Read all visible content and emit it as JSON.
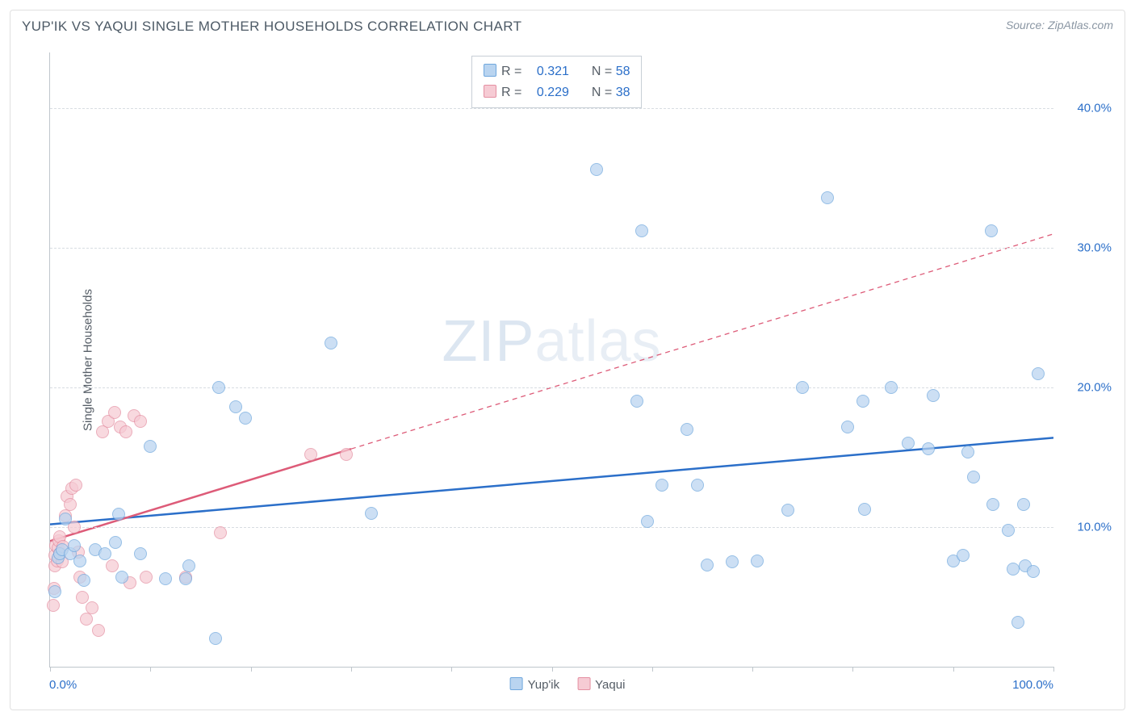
{
  "title": "YUP'IK VS YAQUI SINGLE MOTHER HOUSEHOLDS CORRELATION CHART",
  "source": "Source: ZipAtlas.com",
  "y_axis_label": "Single Mother Households",
  "watermark": {
    "bold": "ZIP",
    "light": "atlas"
  },
  "chart": {
    "type": "scatter",
    "xlim": [
      0,
      100
    ],
    "ylim": [
      0,
      44
    ],
    "x_ticks_label": {
      "min": "0.0%",
      "max": "100.0%"
    },
    "x_tick_positions": [
      0,
      10,
      20,
      30,
      40,
      50,
      60,
      70,
      80,
      90,
      100
    ],
    "y_ticks": [
      {
        "v": 10,
        "label": "10.0%"
      },
      {
        "v": 20,
        "label": "20.0%"
      },
      {
        "v": 30,
        "label": "30.0%"
      },
      {
        "v": 40,
        "label": "40.0%"
      }
    ],
    "background_color": "#ffffff",
    "grid_color": "#d8dde2",
    "series": {
      "yupik": {
        "label": "Yup'ik",
        "marker_fill": "#b9d4f0",
        "marker_stroke": "#6fa7dd",
        "marker_size": 16,
        "regression": {
          "color": "#2b6fc9",
          "width": 2.5,
          "dashed": false,
          "start": {
            "x": 0,
            "y": 10.2
          },
          "end": {
            "x": 100,
            "y": 16.4
          }
        },
        "stats": {
          "R": "0.321",
          "N": "58"
        },
        "points": [
          {
            "x": 0.5,
            "y": 5.4
          },
          {
            "x": 0.8,
            "y": 7.8
          },
          {
            "x": 1.0,
            "y": 8.1
          },
          {
            "x": 1.2,
            "y": 8.4
          },
          {
            "x": 1.5,
            "y": 10.6
          },
          {
            "x": 2.0,
            "y": 8.1
          },
          {
            "x": 2.4,
            "y": 8.7
          },
          {
            "x": 3.0,
            "y": 7.6
          },
          {
            "x": 3.4,
            "y": 6.2
          },
          {
            "x": 4.5,
            "y": 8.4
          },
          {
            "x": 5.5,
            "y": 8.1
          },
          {
            "x": 6.5,
            "y": 8.9
          },
          {
            "x": 6.8,
            "y": 10.9
          },
          {
            "x": 7.2,
            "y": 6.4
          },
          {
            "x": 9.0,
            "y": 8.1
          },
          {
            "x": 10.0,
            "y": 15.8
          },
          {
            "x": 11.5,
            "y": 6.3
          },
          {
            "x": 13.5,
            "y": 6.3
          },
          {
            "x": 13.8,
            "y": 7.2
          },
          {
            "x": 16.5,
            "y": 2.0
          },
          {
            "x": 16.8,
            "y": 20.0
          },
          {
            "x": 18.5,
            "y": 18.6
          },
          {
            "x": 19.5,
            "y": 17.8
          },
          {
            "x": 28.0,
            "y": 23.2
          },
          {
            "x": 32.0,
            "y": 11.0
          },
          {
            "x": 54.5,
            "y": 35.6
          },
          {
            "x": 58.5,
            "y": 19.0
          },
          {
            "x": 59.0,
            "y": 31.2
          },
          {
            "x": 59.5,
            "y": 10.4
          },
          {
            "x": 61.0,
            "y": 13.0
          },
          {
            "x": 63.5,
            "y": 17.0
          },
          {
            "x": 64.5,
            "y": 13.0
          },
          {
            "x": 65.5,
            "y": 7.3
          },
          {
            "x": 68.0,
            "y": 7.5
          },
          {
            "x": 70.5,
            "y": 7.6
          },
          {
            "x": 73.5,
            "y": 11.2
          },
          {
            "x": 75.0,
            "y": 20.0
          },
          {
            "x": 77.5,
            "y": 33.6
          },
          {
            "x": 79.5,
            "y": 17.2
          },
          {
            "x": 81.0,
            "y": 19.0
          },
          {
            "x": 81.2,
            "y": 11.3
          },
          {
            "x": 83.8,
            "y": 20.0
          },
          {
            "x": 85.5,
            "y": 16.0
          },
          {
            "x": 87.5,
            "y": 15.6
          },
          {
            "x": 88.0,
            "y": 19.4
          },
          {
            "x": 90.0,
            "y": 7.6
          },
          {
            "x": 91.0,
            "y": 8.0
          },
          {
            "x": 91.5,
            "y": 15.4
          },
          {
            "x": 92.0,
            "y": 13.6
          },
          {
            "x": 93.8,
            "y": 31.2
          },
          {
            "x": 94.0,
            "y": 11.6
          },
          {
            "x": 95.5,
            "y": 9.8
          },
          {
            "x": 96.0,
            "y": 7.0
          },
          {
            "x": 96.5,
            "y": 3.2
          },
          {
            "x": 97.0,
            "y": 11.6
          },
          {
            "x": 97.2,
            "y": 7.2
          },
          {
            "x": 98.0,
            "y": 6.8
          },
          {
            "x": 98.5,
            "y": 21.0
          }
        ]
      },
      "yaqui": {
        "label": "Yaqui",
        "marker_fill": "#f6cbd4",
        "marker_stroke": "#e48fa2",
        "marker_size": 16,
        "regression": {
          "color": "#dd5b78",
          "width": 2.5,
          "dashed_after_x": 30,
          "start": {
            "x": 0,
            "y": 9.0
          },
          "end": {
            "x": 100,
            "y": 31.0
          }
        },
        "stats": {
          "R": "0.229",
          "N": "38"
        },
        "points": [
          {
            "x": 0.3,
            "y": 4.4
          },
          {
            "x": 0.4,
            "y": 5.6
          },
          {
            "x": 0.5,
            "y": 7.2
          },
          {
            "x": 0.5,
            "y": 8.0
          },
          {
            "x": 0.6,
            "y": 8.7
          },
          {
            "x": 0.7,
            "y": 7.6
          },
          {
            "x": 0.8,
            "y": 8.5
          },
          {
            "x": 0.9,
            "y": 9.0
          },
          {
            "x": 1.0,
            "y": 9.3
          },
          {
            "x": 1.0,
            "y": 8.1
          },
          {
            "x": 1.2,
            "y": 7.5
          },
          {
            "x": 1.3,
            "y": 8.6
          },
          {
            "x": 1.5,
            "y": 10.8
          },
          {
            "x": 1.7,
            "y": 12.2
          },
          {
            "x": 2.0,
            "y": 11.6
          },
          {
            "x": 2.2,
            "y": 12.8
          },
          {
            "x": 2.4,
            "y": 10.0
          },
          {
            "x": 2.6,
            "y": 13.0
          },
          {
            "x": 2.8,
            "y": 8.2
          },
          {
            "x": 3.0,
            "y": 6.4
          },
          {
            "x": 3.2,
            "y": 5.0
          },
          {
            "x": 3.6,
            "y": 3.4
          },
          {
            "x": 4.2,
            "y": 4.2
          },
          {
            "x": 4.8,
            "y": 2.6
          },
          {
            "x": 5.2,
            "y": 16.8
          },
          {
            "x": 5.8,
            "y": 17.6
          },
          {
            "x": 6.2,
            "y": 7.2
          },
          {
            "x": 6.4,
            "y": 18.2
          },
          {
            "x": 7.0,
            "y": 17.2
          },
          {
            "x": 7.6,
            "y": 16.8
          },
          {
            "x": 8.0,
            "y": 6.0
          },
          {
            "x": 8.4,
            "y": 18.0
          },
          {
            "x": 9.0,
            "y": 17.6
          },
          {
            "x": 9.6,
            "y": 6.4
          },
          {
            "x": 13.5,
            "y": 6.4
          },
          {
            "x": 17.0,
            "y": 9.6
          },
          {
            "x": 26.0,
            "y": 15.2
          },
          {
            "x": 29.5,
            "y": 15.2
          }
        ]
      }
    }
  },
  "legend_bottom": [
    {
      "key": "yupik",
      "label": "Yup'ik"
    },
    {
      "key": "yaqui",
      "label": "Yaqui"
    }
  ],
  "stats_legend": [
    {
      "swatch": "yupik",
      "R": "0.321",
      "N": "58"
    },
    {
      "swatch": "yaqui",
      "R": "0.229",
      "N": "38"
    }
  ]
}
